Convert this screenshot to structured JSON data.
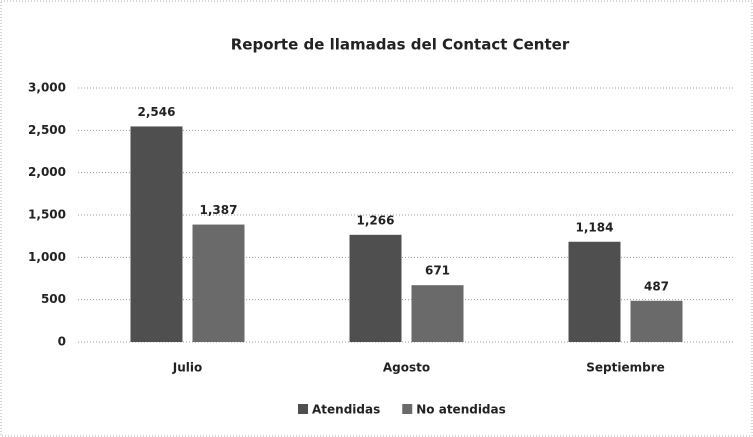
{
  "chart_data": {
    "type": "bar",
    "title": "Reporte de llamadas del Contact Center",
    "categories": [
      "Julio",
      "Agosto",
      "Septiembre"
    ],
    "series": [
      {
        "name": "Atendidas",
        "color": "#4f4f4f",
        "values": [
          2546,
          1266,
          1184
        ],
        "value_labels": [
          "2,546",
          "1,266",
          "1,184"
        ]
      },
      {
        "name": "No atendidas",
        "color": "#6a6a6a",
        "values": [
          1387,
          671,
          487
        ],
        "value_labels": [
          "1,387",
          "671",
          "487"
        ]
      }
    ],
    "ylim": [
      0,
      3000
    ],
    "yticks": [
      0,
      500,
      {
        "value": 1000,
        "label": "1,000"
      },
      {
        "value": 1500,
        "label": "1,500"
      },
      {
        "value": 2000,
        "label": "2,000"
      },
      {
        "value": 2500,
        "label": "2,500"
      },
      {
        "value": 3000,
        "label": "3,000"
      }
    ],
    "grid": true,
    "legend": "bottom"
  }
}
